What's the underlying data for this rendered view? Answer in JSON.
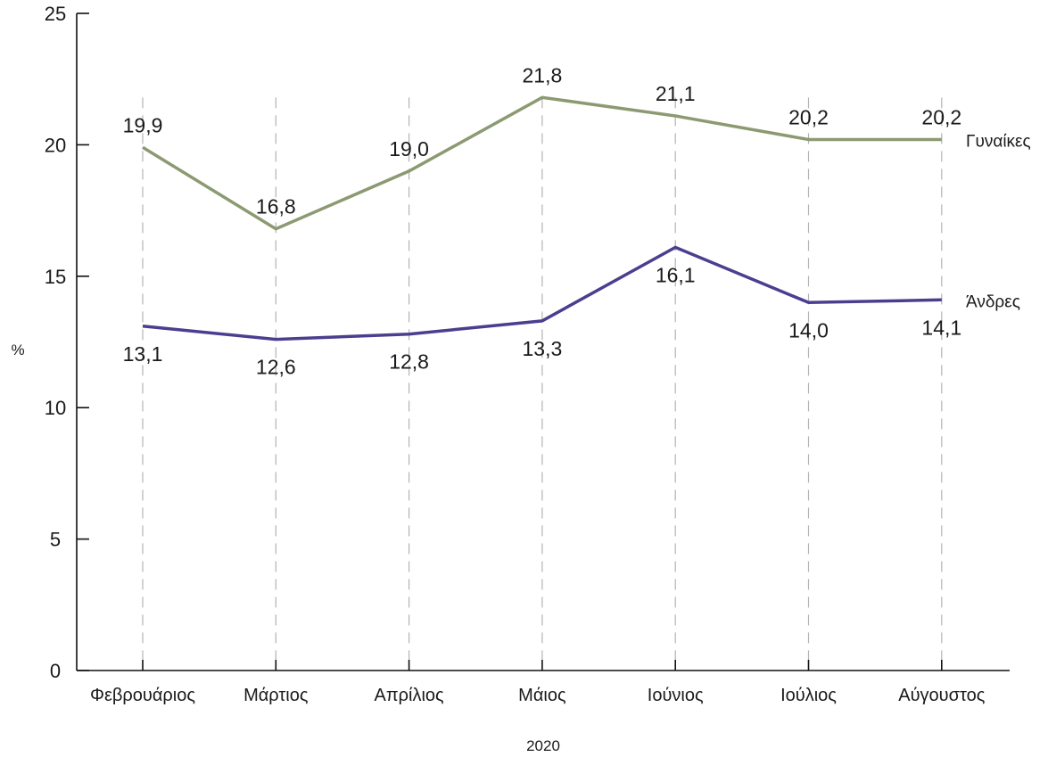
{
  "chart_data": {
    "type": "line",
    "title": "",
    "xlabel": "2020",
    "ylabel": "%",
    "ylim": [
      0,
      25
    ],
    "yticks": [
      0,
      5,
      10,
      15,
      20,
      25
    ],
    "grid": "vertical dashed",
    "categories": [
      "Φεβρουάριος",
      "Μάρτιος",
      "Απρίλιος",
      "Μάιος",
      "Ιούνιος",
      "Ιούλιος",
      "Αύγουστος"
    ],
    "series": [
      {
        "name": "Γυναίκες",
        "color": "#8c9a72",
        "values": [
          19.9,
          16.8,
          19.0,
          21.8,
          21.1,
          20.2,
          20.2
        ],
        "labels": [
          "19,9",
          "16,8",
          "19,0",
          "21,8",
          "21,1",
          "20,2",
          "20,2"
        ],
        "label_position": "above"
      },
      {
        "name": "Άνδρες",
        "color": "#4a3f8f",
        "values": [
          13.1,
          12.6,
          12.8,
          13.3,
          16.1,
          14.0,
          14.1
        ],
        "labels": [
          "13,1",
          "12,6",
          "12,8",
          "13,3",
          "16,1",
          "14,0",
          "14,1"
        ],
        "label_position": "below"
      }
    ]
  }
}
